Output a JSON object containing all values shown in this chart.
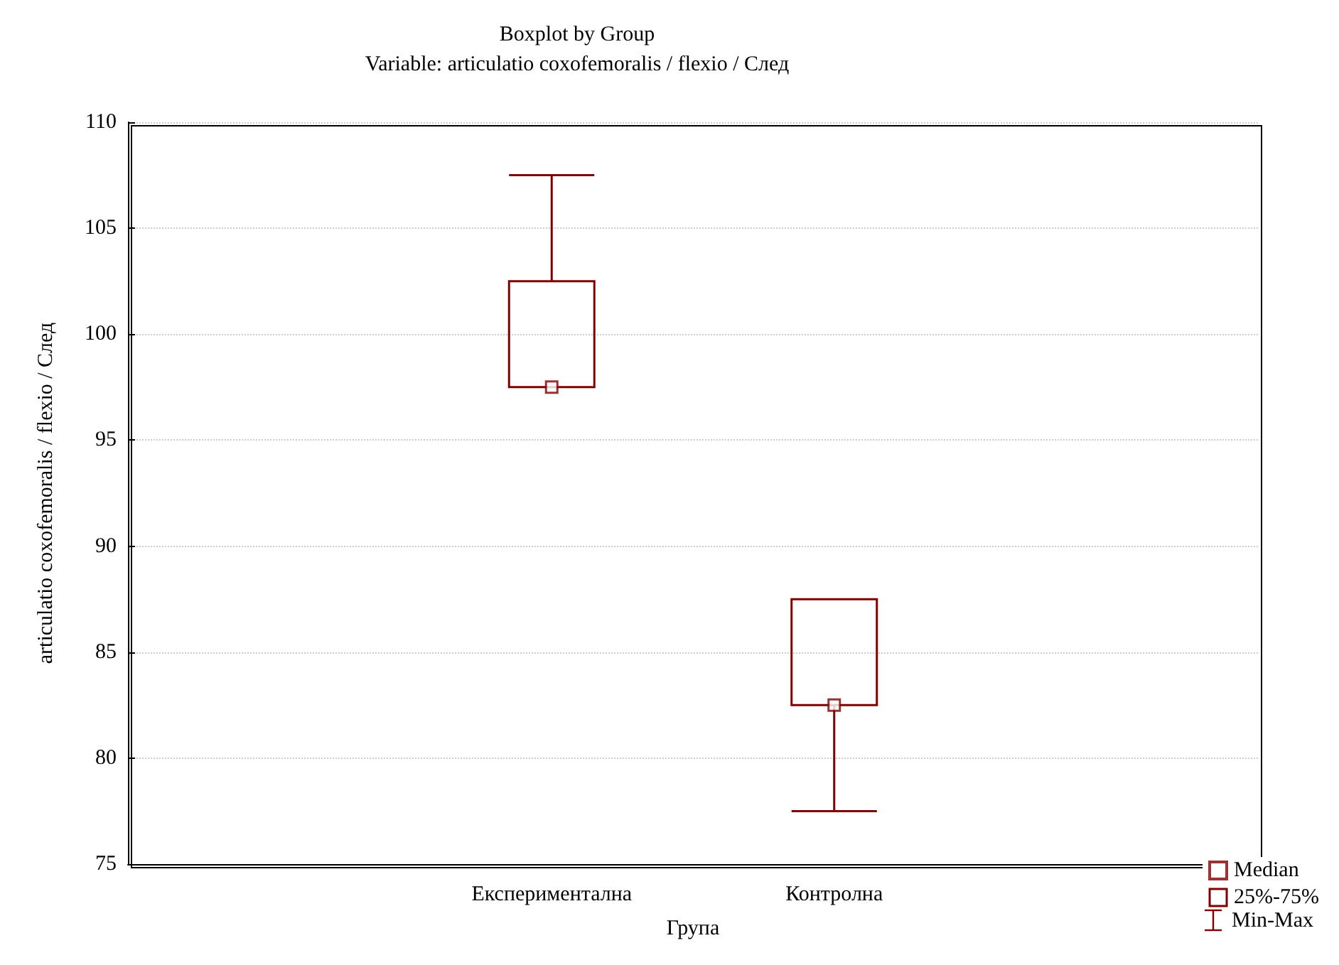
{
  "chart_data": {
    "type": "box",
    "title": "Boxplot by Group",
    "subtitle": "Variable: articulatio coxofemoralis / flexio / След",
    "xlabel": "Група",
    "ylabel": "articulatio coxofemoralis / flexio / След",
    "categories": [
      null,
      "Експериментална",
      "Контролна",
      null
    ],
    "series": [
      {
        "type": "scatter",
        "name": "Median",
        "color": "#800000",
        "marker": "square",
        "x": [
          "Експериментална",
          "Контролна"
        ],
        "values": [
          97.5,
          82.5
        ]
      },
      {
        "name": "25%-75%",
        "color": "#800000",
        "boxes": [
          null,
          {
            "low": 97.5,
            "q1": 97.5,
            "median": 97.5,
            "q3": 102.5,
            "high": 107.5
          },
          {
            "low": 77.5,
            "q1": 82.5,
            "median": 82.5,
            "q3": 87.5,
            "high": 87.5
          },
          null
        ]
      }
    ],
    "annotations": [
      "Min-Max"
    ],
    "ylim": [
      75,
      110
    ],
    "yticks": [
      75,
      80,
      85,
      90,
      95,
      100,
      105,
      110
    ],
    "grid": "y",
    "legend": "bottom right"
  }
}
